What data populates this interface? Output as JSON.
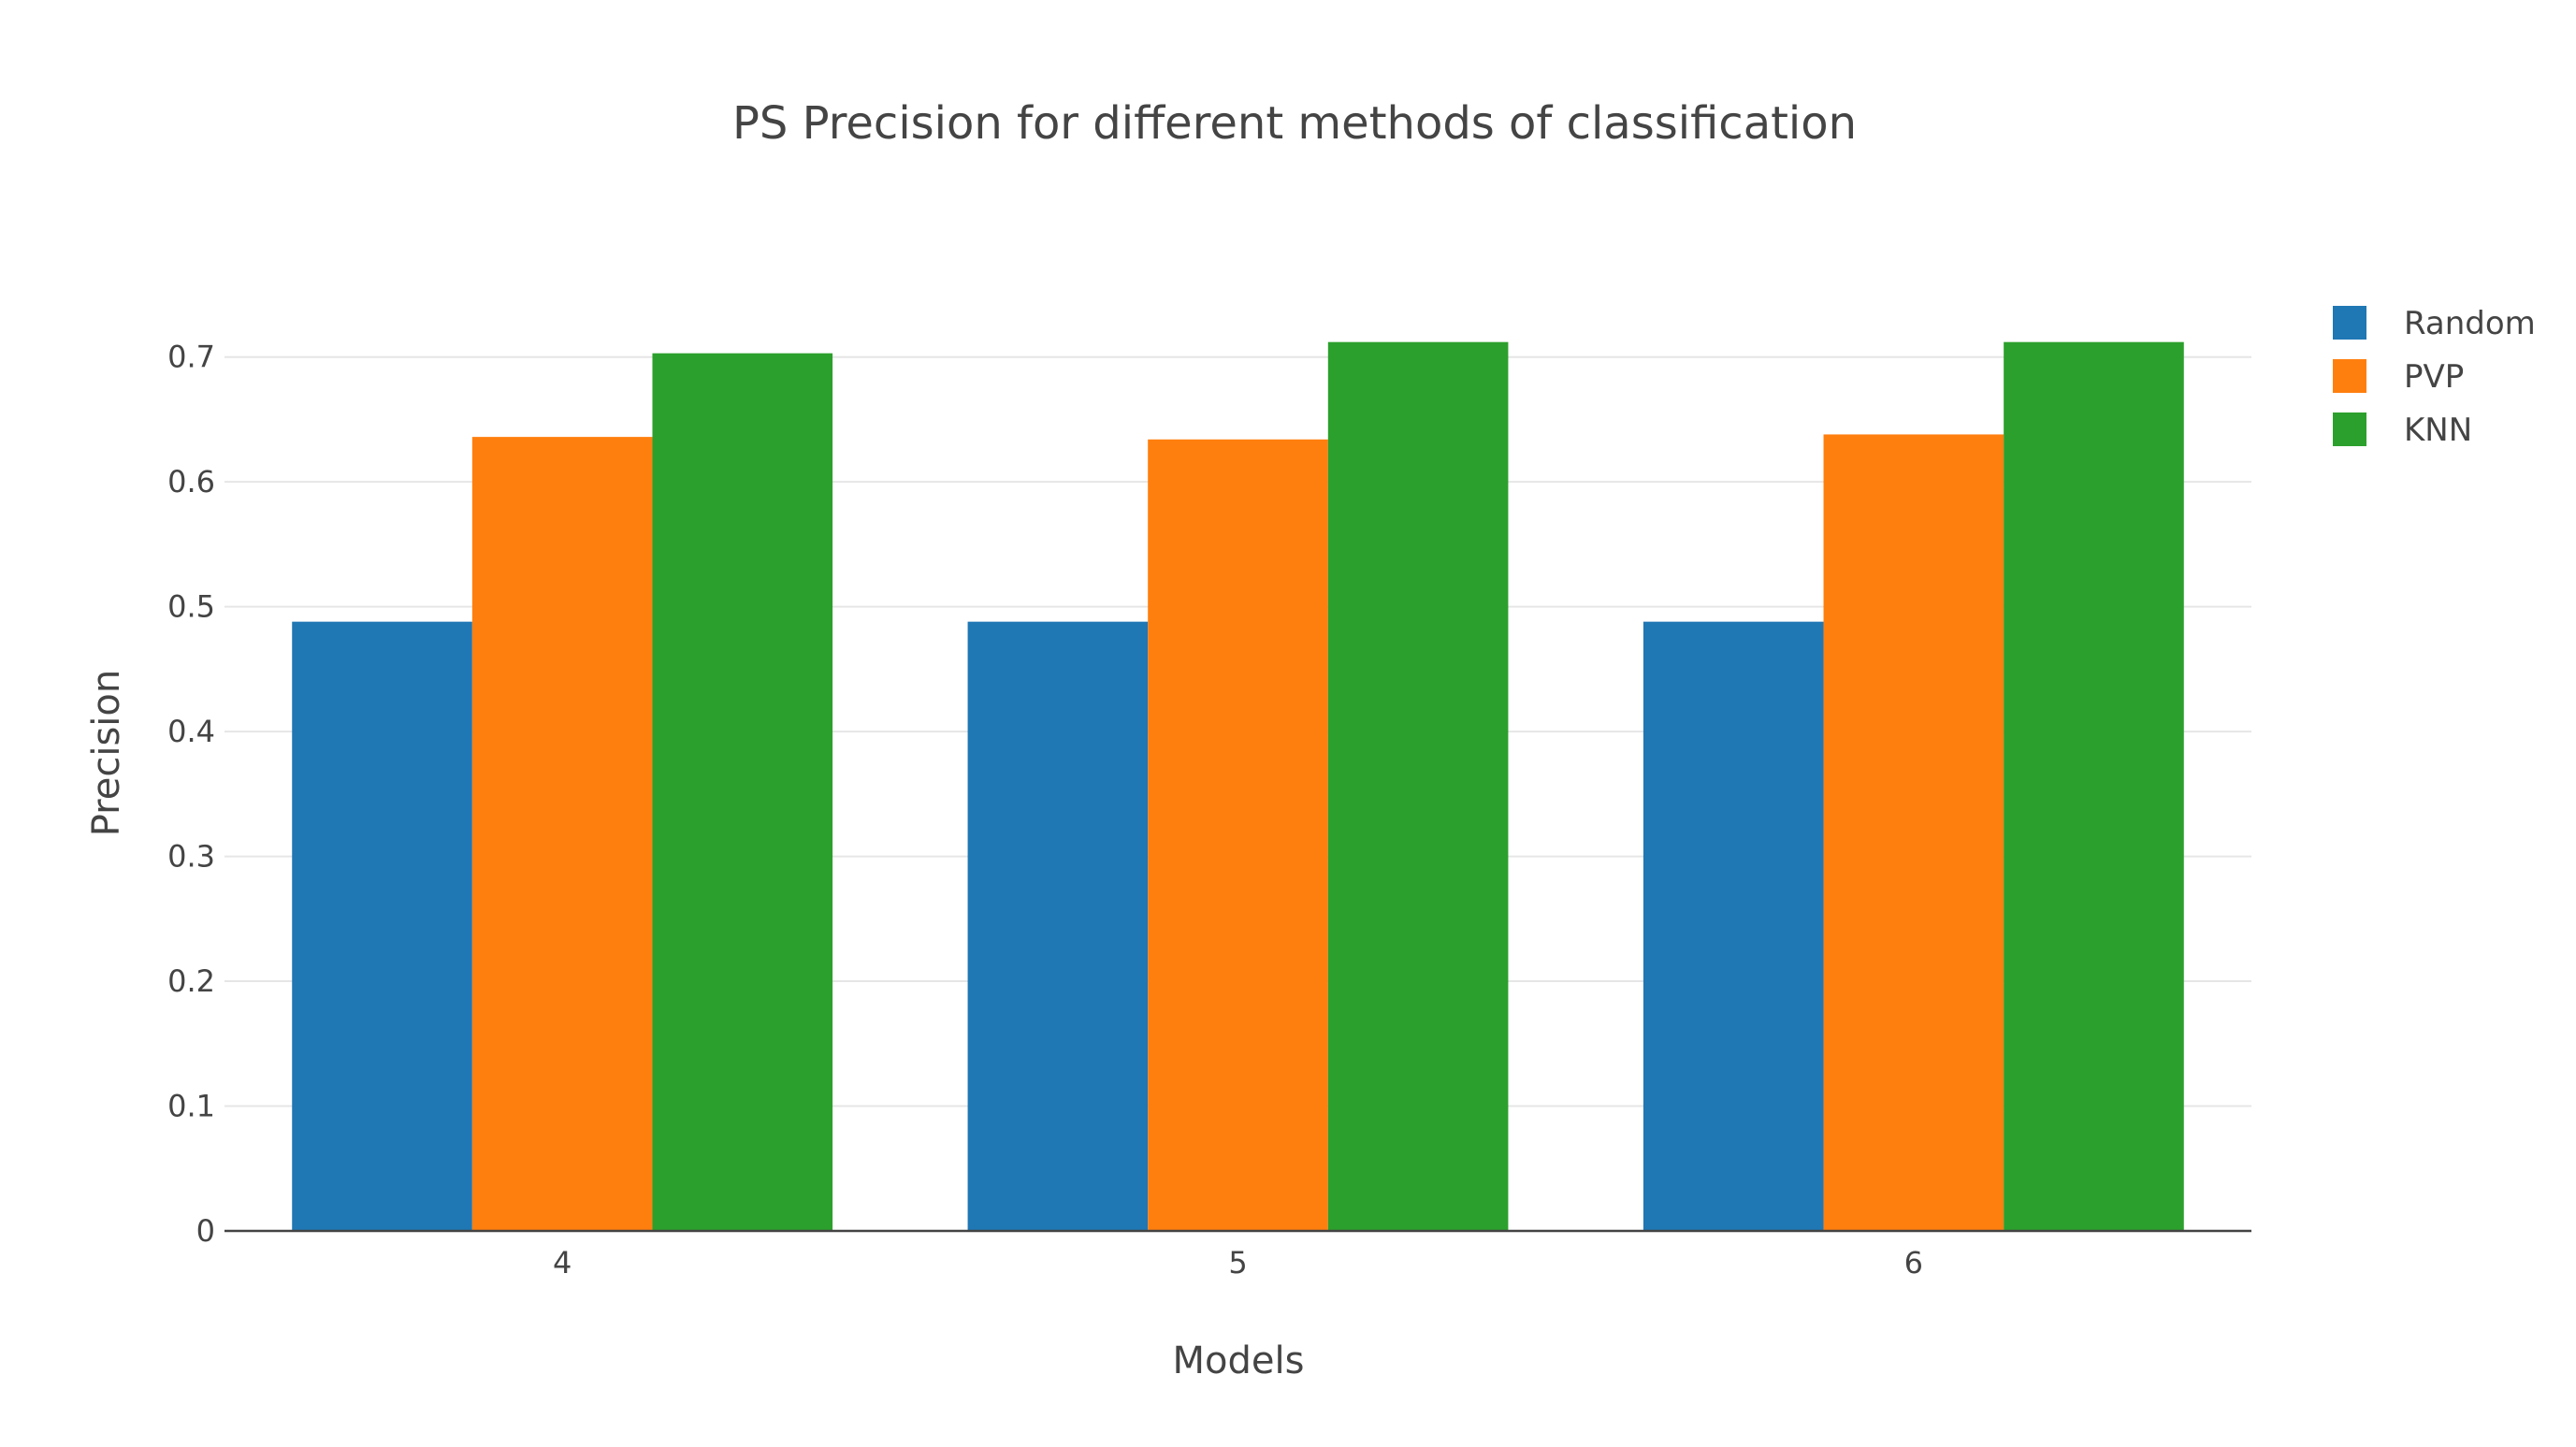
{
  "chart_data": {
    "type": "bar",
    "title": "PS Precision for different methods of classification",
    "xlabel": "Models",
    "ylabel": "Precision",
    "categories": [
      "4",
      "5",
      "6"
    ],
    "ylim": [
      0,
      0.72
    ],
    "yticks": [
      0,
      0.1,
      0.2,
      0.3,
      0.4,
      0.5,
      0.6,
      0.7
    ],
    "ytick_labels": [
      "0",
      "0.1",
      "0.2",
      "0.3",
      "0.4",
      "0.5",
      "0.6",
      "0.7"
    ],
    "grid": true,
    "legend_position": "top-right",
    "series": [
      {
        "name": "Random",
        "color": "#1f77b4",
        "values": [
          0.488,
          0.488,
          0.488
        ]
      },
      {
        "name": "PVP",
        "color": "#ff7f0e",
        "values": [
          0.636,
          0.634,
          0.638
        ]
      },
      {
        "name": "KNN",
        "color": "#2ca02c",
        "values": [
          0.703,
          0.712,
          0.712
        ]
      }
    ]
  }
}
